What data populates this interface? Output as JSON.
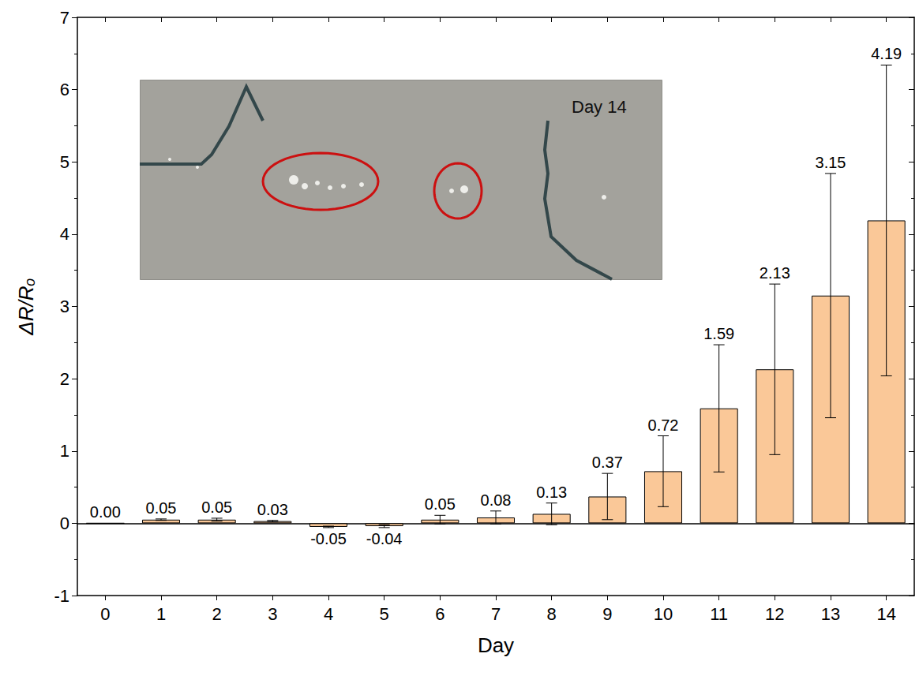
{
  "chart_data": {
    "type": "bar",
    "categories": [
      "0",
      "1",
      "2",
      "3",
      "4",
      "5",
      "6",
      "7",
      "8",
      "9",
      "10",
      "11",
      "12",
      "13",
      "14"
    ],
    "values": [
      0,
      0.05,
      0.05,
      0.03,
      -0.05,
      -0.04,
      0.05,
      0.08,
      0.13,
      0.37,
      0.72,
      1.59,
      2.13,
      3.15,
      4.19
    ],
    "value_labels": [
      "0.00",
      "0.05",
      "0.05",
      "0.03",
      "-0.05",
      "-0.04",
      "0.05",
      "0.08",
      "0.13",
      "0.37",
      "0.72",
      "1.59",
      "2.13",
      "3.15",
      "4.19"
    ],
    "errors": [
      0,
      0.01,
      0.02,
      0.01,
      0.01,
      0.02,
      0.06,
      0.09,
      0.15,
      0.32,
      0.49,
      0.88,
      1.18,
      1.69,
      2.15
    ],
    "color": "#fac898",
    "xlabel": "Day",
    "ylabel": "ΔR/Rₒ",
    "ylim": [
      -1,
      7
    ],
    "yticks": [
      -1,
      0,
      1,
      2,
      3,
      4,
      5,
      6,
      7
    ],
    "data_labels": true,
    "annotations": [
      "Day 14"
    ]
  }
}
